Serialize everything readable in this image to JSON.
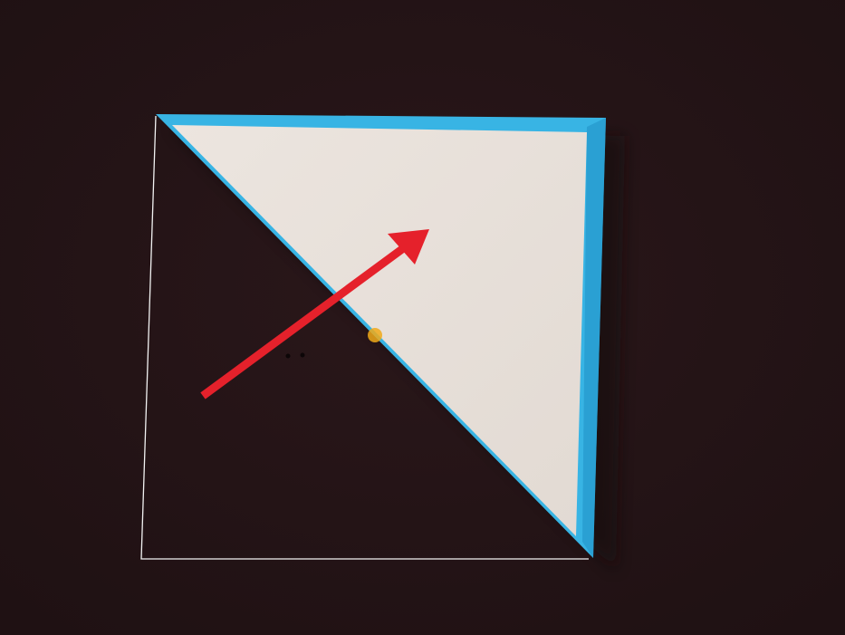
{
  "photo": {
    "subject": "origami-fold-step",
    "colors": {
      "background": "#1f1113",
      "background_light": "#2a171a",
      "paper_front": "#e9e2dc",
      "paper_border": "#38b4e4",
      "paper_border_dark": "#1f8fc4",
      "guide_line": "#f3f3f3",
      "arrow": "#e5212b",
      "mark": "#f0a919"
    },
    "annotations": {
      "arrow": "fold-direction-arrow",
      "outline": "fold-guide-outline"
    }
  }
}
